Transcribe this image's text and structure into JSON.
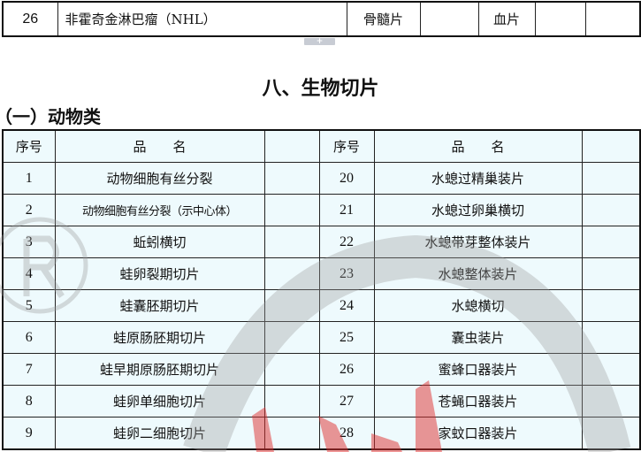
{
  "prev_table_row": {
    "no": "26",
    "name": "非霍奇金淋巴瘤（NHL）",
    "col3": "骨髓片",
    "col4": "",
    "col5": "血片",
    "col6": "",
    "col7": ""
  },
  "page_break_icon": "plus-icon",
  "section_title": "八、生物切片",
  "subsection_title": "（一）动物类",
  "table": {
    "headers": {
      "no": "序号",
      "name": "品　　名"
    },
    "rows": [
      {
        "l_no": "1",
        "l_name": "动物细胞有丝分裂",
        "r_no": "20",
        "r_name": "水螅过精巢装片"
      },
      {
        "l_no": "2",
        "l_name": "动物细胞有丝分裂（示中心体）",
        "r_no": "21",
        "r_name": "水螅过卵巢横切"
      },
      {
        "l_no": "3",
        "l_name": "蚯蚓横切",
        "r_no": "22",
        "r_name": "水螅带芽整体装片"
      },
      {
        "l_no": "4",
        "l_name": "蛙卵裂期切片",
        "r_no": "23",
        "r_name": "水螅整体装片"
      },
      {
        "l_no": "5",
        "l_name": "蛙囊胚期切片",
        "r_no": "24",
        "r_name": "水螅横切"
      },
      {
        "l_no": "6",
        "l_name": "蛙原肠胚期切片",
        "r_no": "25",
        "r_name": "囊虫装片"
      },
      {
        "l_no": "7",
        "l_name": "蛙早期原肠胚期切片",
        "r_no": "26",
        "r_name": "蜜蜂口器装片"
      },
      {
        "l_no": "8",
        "l_name": "蛙卵单细胞切片",
        "r_no": "27",
        "r_name": "苍蝇口器装片"
      },
      {
        "l_no": "9",
        "l_name": "蛙卵二细胞切片",
        "r_no": "28",
        "r_name": "家蚊口器装片"
      }
    ]
  },
  "colors": {
    "cell_bg": "#eefafd",
    "watermark_grey": "#9a9a9a",
    "watermark_red": "#e03030"
  }
}
